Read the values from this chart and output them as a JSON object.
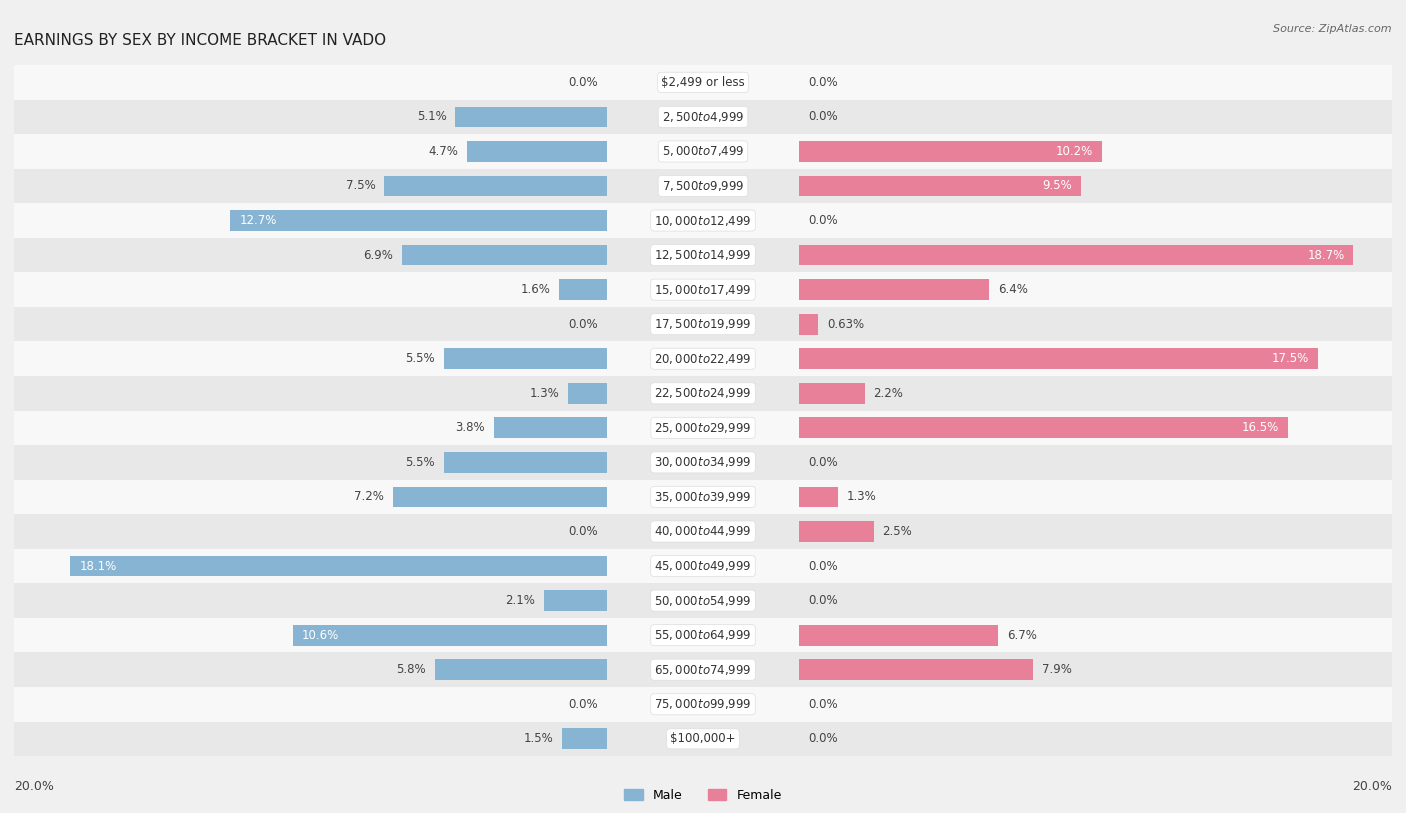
{
  "title": "EARNINGS BY SEX BY INCOME BRACKET IN VADO",
  "source": "Source: ZipAtlas.com",
  "categories": [
    "$2,499 or less",
    "$2,500 to $4,999",
    "$5,000 to $7,499",
    "$7,500 to $9,999",
    "$10,000 to $12,499",
    "$12,500 to $14,999",
    "$15,000 to $17,499",
    "$17,500 to $19,999",
    "$20,000 to $22,499",
    "$22,500 to $24,999",
    "$25,000 to $29,999",
    "$30,000 to $34,999",
    "$35,000 to $39,999",
    "$40,000 to $44,999",
    "$45,000 to $49,999",
    "$50,000 to $54,999",
    "$55,000 to $64,999",
    "$65,000 to $74,999",
    "$75,000 to $99,999",
    "$100,000+"
  ],
  "male": [
    0.0,
    5.1,
    4.7,
    7.5,
    12.7,
    6.9,
    1.6,
    0.0,
    5.5,
    1.3,
    3.8,
    5.5,
    7.2,
    0.0,
    18.1,
    2.1,
    10.6,
    5.8,
    0.0,
    1.5
  ],
  "female": [
    0.0,
    0.0,
    10.2,
    9.5,
    0.0,
    18.7,
    6.4,
    0.63,
    17.5,
    2.2,
    16.5,
    0.0,
    1.3,
    2.5,
    0.0,
    0.0,
    6.7,
    7.9,
    0.0,
    0.0
  ],
  "male_color": "#88b4d4",
  "female_color": "#e8809a",
  "bg_color": "#f0f0f0",
  "row_even_color": "#f8f8f8",
  "row_odd_color": "#e8e8e8",
  "xlim": 20.0,
  "legend_male": "Male",
  "legend_female": "Female",
  "title_fontsize": 11,
  "label_fontsize": 8.5,
  "category_fontsize": 8.5,
  "pill_color": "#ffffff",
  "pill_edge_color": "#dddddd",
  "dark_label": "#444444",
  "white_label": "#ffffff"
}
